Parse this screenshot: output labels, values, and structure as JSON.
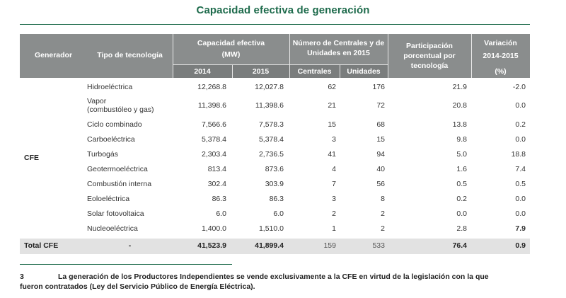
{
  "title": "Capacidad efectiva de generación",
  "header": {
    "generador": "Generador",
    "tipo": "Tipo de tecnología",
    "capacidad": "Capacidad efectiva",
    "capacidad_unit": "(MW)",
    "year_2014": "2014",
    "year_2015": "2015",
    "numero": "Número de Centrales y de",
    "numero2": "Unidades en 2015",
    "centrales": "Centrales",
    "unidades": "Unidades",
    "participacion": "Participación",
    "participacion2": "porcentual por",
    "participacion3": "tecnología",
    "variacion": "Variación",
    "variacion2": "2014-2015",
    "variacion3": "(%)"
  },
  "group_label": "CFE",
  "rows": [
    {
      "tipo": "Hidroeléctrica",
      "tipo2": "",
      "c2014": "12,268.8",
      "c2015": "12,027.8",
      "centrales": "62",
      "unidades": "176",
      "part": "21.9",
      "var": "-2.0"
    },
    {
      "tipo": "Vapor",
      "tipo2": "(combustóleo y gas)",
      "c2014": "11,398.6",
      "c2015": "11,398.6",
      "centrales": "21",
      "unidades": "72",
      "part": "20.8",
      "var": "0.0"
    },
    {
      "tipo": "Ciclo combinado",
      "tipo2": "",
      "c2014": "7,566.6",
      "c2015": "7,578.3",
      "centrales": "15",
      "unidades": "68",
      "part": "13.8",
      "var": "0.2"
    },
    {
      "tipo": "Carboeléctrica",
      "tipo2": "",
      "c2014": "5,378.4",
      "c2015": "5,378.4",
      "centrales": "3",
      "unidades": "15",
      "part": "9.8",
      "var": "0.0"
    },
    {
      "tipo": "Turbogás",
      "tipo2": "",
      "c2014": "2,303.4",
      "c2015": "2,736.5",
      "centrales": "41",
      "unidades": "94",
      "part": "5.0",
      "var": "18.8"
    },
    {
      "tipo": "Geotermoeléctrica",
      "tipo2": "",
      "c2014": "813.4",
      "c2015": "873.6",
      "centrales": "4",
      "unidades": "40",
      "part": "1.6",
      "var": "7.4"
    },
    {
      "tipo": "Combustión interna",
      "tipo2": "",
      "c2014": "302.4",
      "c2015": "303.9",
      "centrales": "7",
      "unidades": "56",
      "part": "0.5",
      "var": "0.5"
    },
    {
      "tipo": "Eoloeléctrica",
      "tipo2": "",
      "c2014": "86.3",
      "c2015": "86.3",
      "centrales": "3",
      "unidades": "8",
      "part": "0.2",
      "var": "0.0"
    },
    {
      "tipo": "Solar fotovoltaica",
      "tipo2": "",
      "c2014": "6.0",
      "c2015": "6.0",
      "centrales": "2",
      "unidades": "2",
      "part": "0.0",
      "var": "0.0"
    },
    {
      "tipo": "Nucleoeléctrica",
      "tipo2": "",
      "c2014": "1,400.0",
      "c2015": "1,510.0",
      "centrales": "1",
      "unidades": "2",
      "part": "2.8",
      "var": "7.9"
    }
  ],
  "total": {
    "label": "Total CFE",
    "tipo": "-",
    "c2014": "41,523.9",
    "c2015": "41,899.4",
    "centrales": "159",
    "unidades": "533",
    "part": "76.4",
    "var": "0.9"
  },
  "footnote": {
    "number": "3",
    "line1": "La generación de los Productores Independientes se vende exclusivamente a la CFE en virtud de la legislación con la que",
    "line2": "fueron contratados (Ley del Servicio Público de Energía Eléctrica)."
  },
  "colors": {
    "title": "#1e6b4c",
    "header_bg": "#8a8d8d",
    "total_bg": "#e2e2e2"
  }
}
